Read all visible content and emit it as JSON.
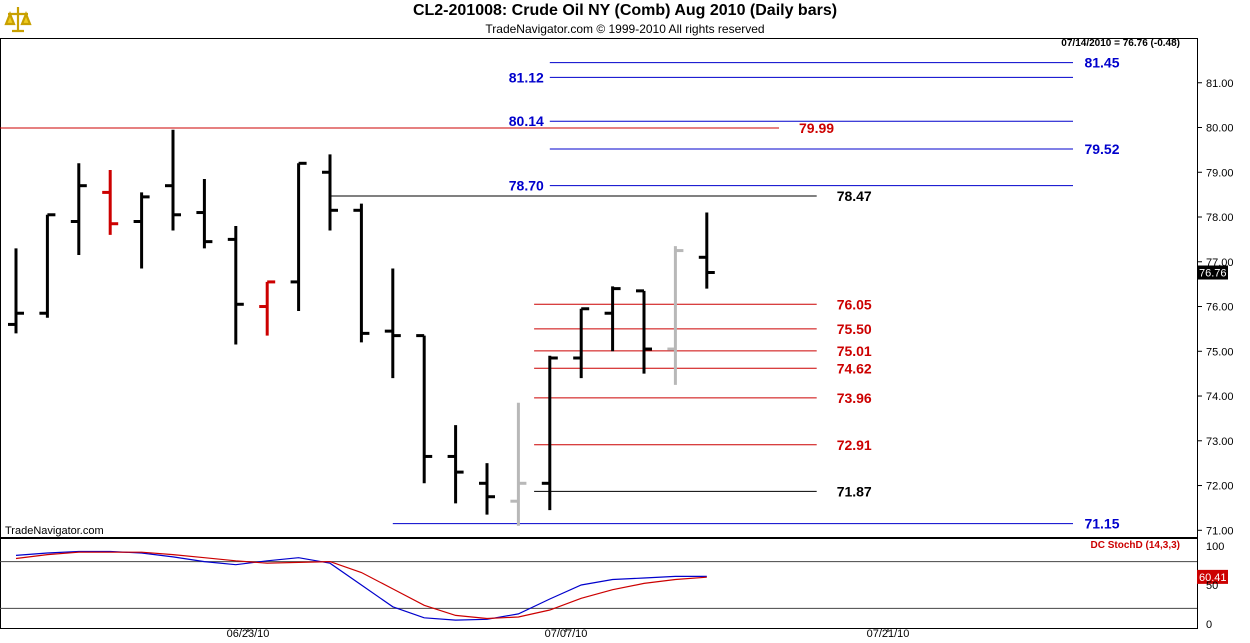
{
  "header": {
    "title": "CL2-201008:  Crude Oil NY (Comb) Aug 2010  (Daily bars)",
    "subtitle": "TradeNavigator.com © 1999-2010 All rights reserved"
  },
  "watermark": "TradeNavigator.com",
  "colors": {
    "blue": "#0000cc",
    "red": "#cc0000",
    "black": "#000000",
    "grey": "#b8b8b8",
    "bar_red": "#ee0000"
  },
  "chart_data": [
    {
      "type": "ohlc",
      "title": "CL2-201008:  Crude Oil NY (Comb) Aug 2010  (Daily bars)",
      "last_quote": "07/14/2010 = 76.76 (-0.48)",
      "last_price": "76.76",
      "ylim": [
        70.85,
        82.0
      ],
      "y_ticks": [
        "71.00",
        "72.00",
        "73.00",
        "74.00",
        "75.00",
        "76.00",
        "77.00",
        "78.00",
        "79.00",
        "80.00",
        "81.00"
      ],
      "x_ticks": [
        "06/23/10",
        "07/07/10",
        "07/21/10"
      ],
      "bars": [
        {
          "o": 75.6,
          "h": 77.3,
          "l": 75.4,
          "c": 75.85,
          "color": "black"
        },
        {
          "o": 75.85,
          "h": 78.05,
          "l": 75.75,
          "c": 78.05,
          "color": "black"
        },
        {
          "o": 77.9,
          "h": 79.2,
          "l": 77.15,
          "c": 78.7,
          "color": "black"
        },
        {
          "o": 78.55,
          "h": 79.05,
          "l": 77.6,
          "c": 77.85,
          "color": "red"
        },
        {
          "o": 77.9,
          "h": 78.55,
          "l": 76.85,
          "c": 78.45,
          "color": "black"
        },
        {
          "o": 78.7,
          "h": 79.95,
          "l": 77.7,
          "c": 78.05,
          "color": "black"
        },
        {
          "o": 78.1,
          "h": 78.85,
          "l": 77.3,
          "c": 77.45,
          "color": "black"
        },
        {
          "o": 77.5,
          "h": 77.8,
          "l": 75.15,
          "c": 76.05,
          "color": "black"
        },
        {
          "o": 76.0,
          "h": 76.55,
          "l": 75.35,
          "c": 76.55,
          "color": "red"
        },
        {
          "o": 76.55,
          "h": 79.2,
          "l": 75.9,
          "c": 79.2,
          "color": "black"
        },
        {
          "o": 79.0,
          "h": 79.4,
          "l": 77.7,
          "c": 78.15,
          "color": "black"
        },
        {
          "o": 78.15,
          "h": 78.3,
          "l": 75.2,
          "c": 75.4,
          "color": "black"
        },
        {
          "o": 75.45,
          "h": 76.85,
          "l": 74.4,
          "c": 75.35,
          "color": "black"
        },
        {
          "o": 75.35,
          "h": 75.35,
          "l": 72.05,
          "c": 72.65,
          "color": "black"
        },
        {
          "o": 72.65,
          "h": 73.35,
          "l": 71.6,
          "c": 72.3,
          "color": "black"
        },
        {
          "o": 72.05,
          "h": 72.5,
          "l": 71.35,
          "c": 71.75,
          "color": "black"
        },
        {
          "o": 71.65,
          "h": 73.85,
          "l": 71.1,
          "c": 72.05,
          "color": "grey"
        },
        {
          "o": 72.05,
          "h": 74.9,
          "l": 71.45,
          "c": 74.85,
          "color": "black"
        },
        {
          "o": 74.85,
          "h": 75.95,
          "l": 74.4,
          "c": 75.95,
          "color": "black"
        },
        {
          "o": 75.85,
          "h": 76.45,
          "l": 75.0,
          "c": 76.4,
          "color": "black"
        },
        {
          "o": 76.35,
          "h": 76.35,
          "l": 74.5,
          "c": 75.05,
          "color": "black"
        },
        {
          "o": 75.05,
          "h": 77.35,
          "l": 74.25,
          "c": 77.25,
          "color": "grey"
        },
        {
          "o": 77.1,
          "h": 78.1,
          "l": 76.4,
          "c": 76.76,
          "color": "black"
        }
      ],
      "levels": [
        {
          "label": "81.45",
          "value": 81.45,
          "color": "blue",
          "from": 17,
          "label_side": "right"
        },
        {
          "label": "81.12",
          "value": 81.12,
          "color": "blue",
          "from": 17,
          "label_side": "left"
        },
        {
          "label": "80.14",
          "value": 80.14,
          "color": "blue",
          "from": 17,
          "label_side": "left"
        },
        {
          "label": "79.99",
          "value": 79.99,
          "color": "red",
          "from": -1,
          "to": 24.3,
          "label_side": "end"
        },
        {
          "label": "79.52",
          "value": 79.52,
          "color": "blue",
          "from": 17,
          "label_side": "right"
        },
        {
          "label": "78.70",
          "value": 78.7,
          "color": "blue",
          "from": 17,
          "label_side": "left"
        },
        {
          "label": "78.47",
          "value": 78.47,
          "color": "black",
          "from": 10,
          "to": 25.5,
          "label_side": "end"
        },
        {
          "label": "76.05",
          "value": 76.05,
          "color": "red",
          "from": 16.5,
          "to": 25.5,
          "label_side": "end"
        },
        {
          "label": "75.50",
          "value": 75.5,
          "color": "red",
          "from": 16.5,
          "to": 25.5,
          "label_side": "end"
        },
        {
          "label": "75.01",
          "value": 75.01,
          "color": "red",
          "from": 16.5,
          "to": 25.5,
          "label_side": "end"
        },
        {
          "label": "74.62",
          "value": 74.62,
          "color": "red",
          "from": 16.5,
          "to": 25.5,
          "label_side": "end"
        },
        {
          "label": "73.96",
          "value": 73.96,
          "color": "red",
          "from": 16.5,
          "to": 25.5,
          "label_side": "end"
        },
        {
          "label": "72.91",
          "value": 72.91,
          "color": "red",
          "from": 16.5,
          "to": 25.5,
          "label_side": "end"
        },
        {
          "label": "71.87",
          "value": 71.87,
          "color": "black",
          "from": 16.5,
          "to": 25.5,
          "label_side": "end"
        },
        {
          "label": "71.15",
          "value": 71.15,
          "color": "blue",
          "from": 12,
          "label_side": "right"
        }
      ]
    },
    {
      "type": "line",
      "title": "DC StochD (14,3,3)",
      "last_value": "60.41",
      "ylim": [
        0,
        100
      ],
      "y_ticks": [
        "0",
        "50",
        "100"
      ],
      "hlines": [
        80,
        20
      ],
      "series": [
        {
          "color": "blue",
          "values": [
            88,
            91,
            93,
            93,
            91,
            86,
            80,
            76,
            81,
            85,
            78,
            50,
            22,
            8,
            5,
            6,
            13,
            32,
            50,
            57,
            59,
            61,
            61
          ]
        },
        {
          "color": "red",
          "values": [
            84,
            89,
            92,
            92,
            92,
            89,
            85,
            81,
            78,
            79,
            80,
            66,
            45,
            24,
            11,
            7,
            9,
            18,
            33,
            44,
            52,
            57,
            60
          ]
        }
      ]
    }
  ]
}
